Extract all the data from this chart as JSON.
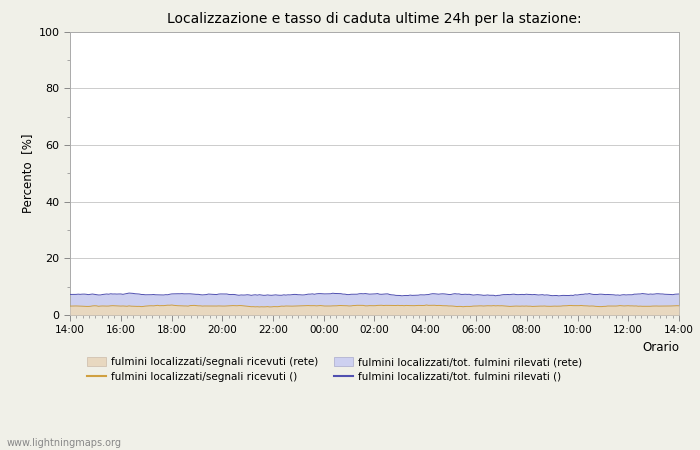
{
  "title": "Localizzazione e tasso di caduta ultime 24h per la stazione:",
  "xlabel": "Orario",
  "ylabel": "Percento  [%]",
  "ylim": [
    0,
    100
  ],
  "yticks": [
    0,
    20,
    40,
    60,
    80,
    100
  ],
  "yticks_minor": [
    10,
    30,
    50,
    70,
    90
  ],
  "x_labels": [
    "14:00",
    "16:00",
    "18:00",
    "20:00",
    "22:00",
    "00:00",
    "02:00",
    "04:00",
    "06:00",
    "08:00",
    "10:00",
    "12:00",
    "14:00"
  ],
  "n_points": 300,
  "fill_blue_mean": 7.2,
  "fill_blue_std": 1.0,
  "fill_beige_mean": 3.2,
  "fill_beige_std": 0.6,
  "fill_blue_color": "#cdd0f0",
  "fill_beige_color": "#e8d8c0",
  "line_orange_color": "#d0a040",
  "line_blue_color": "#5050b0",
  "plot_bg_color": "#ffffff",
  "fig_bg_color": "#f0f0e8",
  "grid_color": "#cccccc",
  "watermark": "www.lightningmaps.org",
  "legend_entries": [
    "fulmini localizzati/segnali ricevuti (rete)",
    "fulmini localizzati/segnali ricevuti ()",
    "fulmini localizzati/tot. fulmini rilevati (rete)",
    "fulmini localizzati/tot. fulmini rilevati ()"
  ]
}
